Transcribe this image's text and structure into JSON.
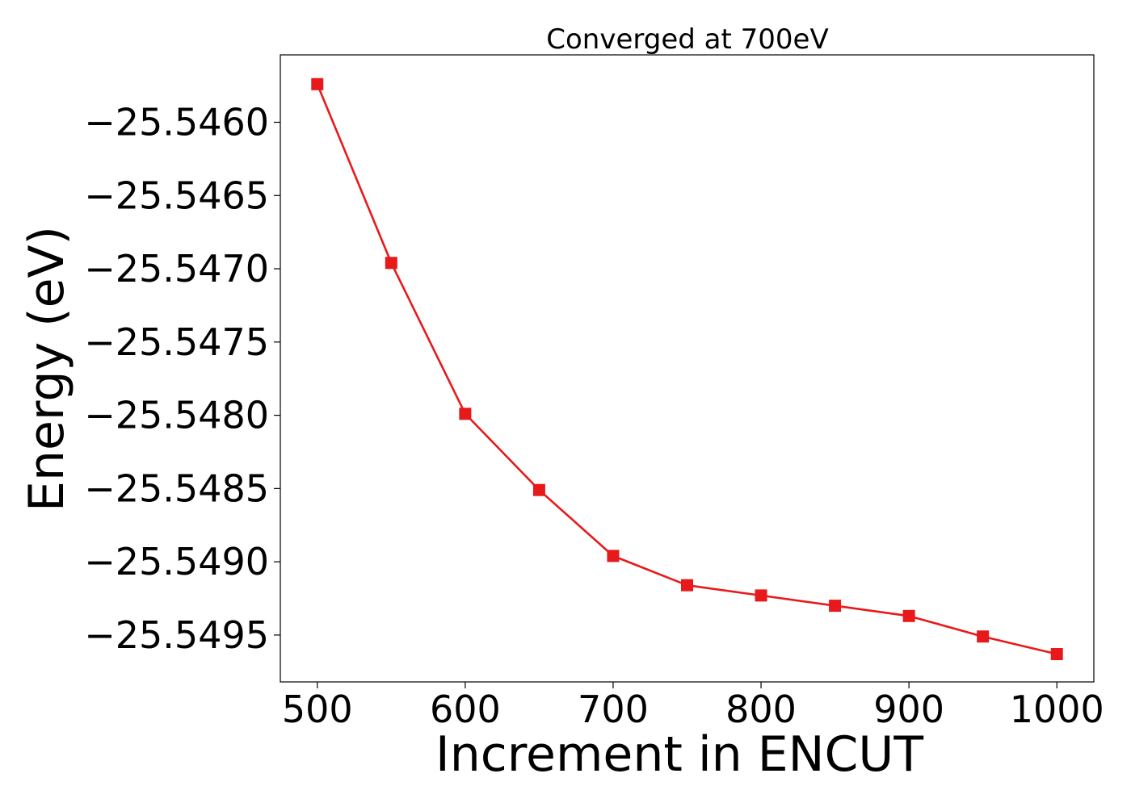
{
  "chart_data": {
    "type": "line",
    "title": "Converged at 700eV",
    "xlabel": "Increment in ENCUT",
    "ylabel": "Energy (eV)",
    "x": [
      500,
      550,
      600,
      650,
      700,
      750,
      800,
      850,
      900,
      950,
      1000
    ],
    "series": [
      {
        "values": [
          -25.54574,
          -25.54696,
          -25.54799,
          -25.54851,
          -25.54896,
          -25.54916,
          -25.54923,
          -25.5493,
          -25.54937,
          -25.54951,
          -25.54963
        ],
        "color": "#e8191b",
        "marker": "square"
      }
    ],
    "xlim": [
      475,
      1025
    ],
    "ylim": [
      -25.54982,
      -25.54554
    ],
    "xticks": [
      500,
      600,
      700,
      800,
      900,
      1000
    ],
    "xtick_labels": [
      "500",
      "600",
      "700",
      "800",
      "900",
      "1000"
    ],
    "yticks": [
      -25.546,
      -25.5465,
      -25.547,
      -25.5475,
      -25.548,
      -25.5485,
      -25.549,
      -25.5495
    ],
    "ytick_labels": [
      "−25.5460",
      "−25.5465",
      "−25.5470",
      "−25.5475",
      "−25.5480",
      "−25.5485",
      "−25.5490",
      "−25.5495"
    ],
    "grid": false,
    "legend": "none"
  }
}
